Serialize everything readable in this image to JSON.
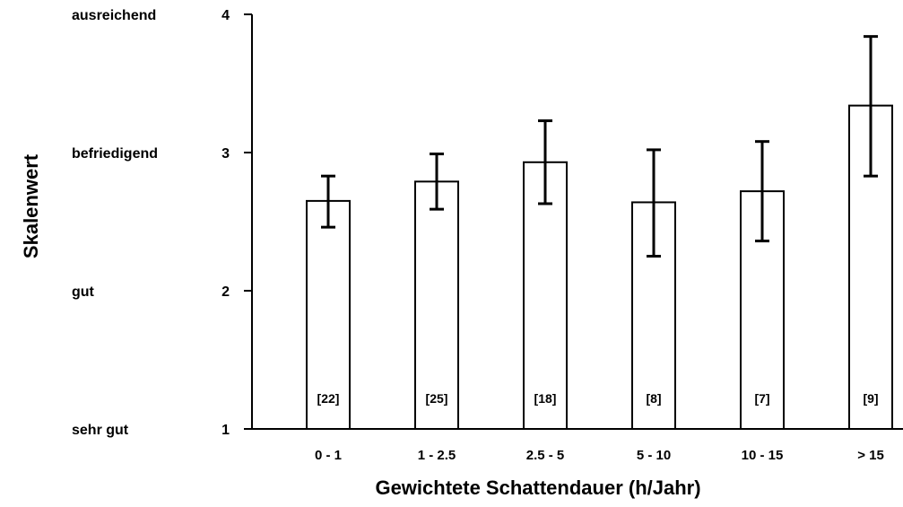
{
  "chart_data": {
    "type": "bar",
    "xlabel": "Gewichtete Schattendauer (h/Jahr)",
    "ylabel": "Skalenwert",
    "ylim": [
      1,
      4
    ],
    "y_ticks": [
      "1",
      "2",
      "3",
      "4"
    ],
    "y_scale_labels": [
      "sehr gut",
      "gut",
      "befriedigend",
      "ausreichend"
    ],
    "categories": [
      "0 - 1",
      "1 - 2.5",
      "2.5 - 5",
      "5 - 10",
      "10 - 15",
      "> 15"
    ],
    "values": [
      2.65,
      2.79,
      2.93,
      2.64,
      2.72,
      3.34
    ],
    "error_low": [
      2.46,
      2.59,
      2.63,
      2.25,
      2.36,
      2.83
    ],
    "error_high": [
      2.83,
      2.99,
      3.23,
      3.02,
      3.08,
      3.84
    ],
    "n_labels": [
      "[22]",
      "[25]",
      "[18]",
      "[8]",
      "[7]",
      "[9]"
    ],
    "grid": false,
    "bar_color": "#ffffff",
    "stroke_color": "#000000"
  }
}
